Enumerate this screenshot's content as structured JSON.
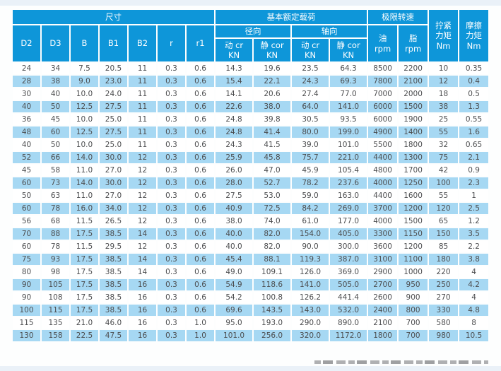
{
  "colors": {
    "header_blue": "#0e96d9",
    "stripe_blue": "#a6d8f3",
    "text_gray": "#4c4d4f",
    "page_strip": "#eaf1f8"
  },
  "table": {
    "header": {
      "group_dimensions": "尺寸",
      "group_load": "基本额定载荷",
      "group_speed": "极限转速",
      "sub_radial": "径向",
      "sub_axial": "轴向",
      "dim_cols": [
        "D2",
        "D3",
        "B",
        "B1",
        "B2",
        "r",
        "r1"
      ],
      "radial_dynamic": "动 cr\nKN",
      "radial_static": "静 cor\nKN",
      "axial_dynamic": "动 cr\nKN",
      "axial_static": "静 cor\nKN",
      "oil": "油\nrpm",
      "grease": "脂\nrpm",
      "tightening_torque": "拧紧\n力矩\nNm",
      "friction_torque": "摩擦\n力矩\nNm"
    },
    "column_keys": [
      "d2",
      "d3",
      "b",
      "b1",
      "b2",
      "r",
      "r1",
      "radial-dynamic-cr",
      "radial-static-cor",
      "axial-dynamic-cr",
      "axial-static-cor",
      "oil-rpm",
      "grease-rpm",
      "tightening-torque",
      "friction-torque"
    ],
    "rows": [
      [
        "24",
        "34",
        "7.5",
        "20.5",
        "11",
        "0.3",
        "0.6",
        "14.3",
        "19.6",
        "23.5",
        "64.3",
        "8500",
        "2200",
        "10",
        "0.35"
      ],
      [
        "28",
        "38",
        "9.0",
        "23.0",
        "11",
        "0.3",
        "0.6",
        "15.4",
        "22.1",
        "24.3",
        "69.3",
        "7800",
        "2100",
        "12",
        "0.4"
      ],
      [
        "30",
        "40",
        "10.0",
        "24.0",
        "11",
        "0.3",
        "0.6",
        "14.1",
        "20.6",
        "27.4",
        "77.0",
        "7000",
        "2000",
        "18",
        "0.5"
      ],
      [
        "40",
        "50",
        "12.5",
        "27.5",
        "11",
        "0.3",
        "0.6",
        "22.6",
        "38.0",
        "64.0",
        "141.0",
        "6000",
        "1500",
        "38",
        "1.3"
      ],
      [
        "36",
        "45",
        "10.0",
        "25.0",
        "11",
        "0.3",
        "0.6",
        "24.8",
        "39.8",
        "30.5",
        "93.5",
        "6000",
        "1900",
        "25",
        "0.55"
      ],
      [
        "48",
        "60",
        "12.5",
        "27.5",
        "11",
        "0.3",
        "0.6",
        "24.8",
        "41.4",
        "80.0",
        "199.0",
        "4900",
        "1400",
        "55",
        "1.6"
      ],
      [
        "40",
        "50",
        "10.0",
        "25.0",
        "11",
        "0.3",
        "0.6",
        "24.3",
        "41.5",
        "39.0",
        "101.0",
        "5500",
        "1800",
        "32",
        "0.65"
      ],
      [
        "52",
        "66",
        "14.0",
        "30.0",
        "12",
        "0.3",
        "0.6",
        "25.9",
        "45.8",
        "75.7",
        "221.0",
        "4400",
        "1300",
        "75",
        "2.1"
      ],
      [
        "45",
        "58",
        "11.0",
        "27.0",
        "12",
        "0.3",
        "0.6",
        "26.0",
        "47.0",
        "45.9",
        "105.4",
        "4800",
        "1700",
        "42",
        "0.9"
      ],
      [
        "60",
        "73",
        "14.0",
        "30.0",
        "12",
        "0.3",
        "0.6",
        "28.0",
        "52.7",
        "78.2",
        "237.6",
        "4000",
        "1250",
        "100",
        "2.3"
      ],
      [
        "50",
        "63",
        "11.0",
        "27.0",
        "12",
        "0.3",
        "0.6",
        "27.5",
        "53.0",
        "59.0",
        "163.0",
        "4400",
        "1600",
        "55",
        "1"
      ],
      [
        "60",
        "78",
        "16.0",
        "34.0",
        "12",
        "0.3",
        "0.6",
        "40.9",
        "72.5",
        "84.2",
        "269.0",
        "3700",
        "1200",
        "120",
        "2.5"
      ],
      [
        "56",
        "68",
        "11.5",
        "26.5",
        "12",
        "0.3",
        "0.6",
        "38.0",
        "74.0",
        "61.0",
        "177.0",
        "4000",
        "1500",
        "65",
        "1.2"
      ],
      [
        "70",
        "88",
        "17.5",
        "38.5",
        "14",
        "0.3",
        "0.6",
        "40.0",
        "82.0",
        "154.0",
        "405.0",
        "3300",
        "1150",
        "150",
        "3.5"
      ],
      [
        "60",
        "78",
        "11.5",
        "29.5",
        "12",
        "0.3",
        "0.6",
        "40.0",
        "82.0",
        "90.0",
        "300.0",
        "3600",
        "1200",
        "85",
        "2.2"
      ],
      [
        "75",
        "93",
        "17.5",
        "38.5",
        "14",
        "0.3",
        "0.6",
        "45.4",
        "88.1",
        "119.3",
        "387.0",
        "3100",
        "1100",
        "180",
        "3.8"
      ],
      [
        "80",
        "98",
        "17.5",
        "38.5",
        "14",
        "0.3",
        "0.6",
        "49.0",
        "109.1",
        "126.0",
        "369.0",
        "2900",
        "1000",
        "220",
        "4"
      ],
      [
        "90",
        "105",
        "17.5",
        "38.5",
        "16",
        "0.3",
        "0.6",
        "54.9",
        "118.6",
        "141.0",
        "505.0",
        "2700",
        "950",
        "250",
        "4.2"
      ],
      [
        "90",
        "108",
        "17.5",
        "38.5",
        "16",
        "0.3",
        "0.6",
        "54.2",
        "100.8",
        "126.2",
        "441.4",
        "2600",
        "900",
        "270",
        "4"
      ],
      [
        "100",
        "115",
        "17.5",
        "38.5",
        "16",
        "0.3",
        "0.6",
        "69.6",
        "143.5",
        "143.0",
        "532.0",
        "2400",
        "800",
        "330",
        "4.8"
      ],
      [
        "115",
        "135",
        "21.0",
        "46.0",
        "16",
        "0.3",
        "1.0",
        "95.0",
        "193.0",
        "290.0",
        "890.0",
        "2100",
        "700",
        "580",
        "8"
      ],
      [
        "130",
        "158",
        "22.5",
        "47.5",
        "16",
        "0.3",
        "1.0",
        "101.0",
        "256.0",
        "320.0",
        "1172.0",
        "1800",
        "700",
        "980",
        "10.5"
      ]
    ]
  }
}
